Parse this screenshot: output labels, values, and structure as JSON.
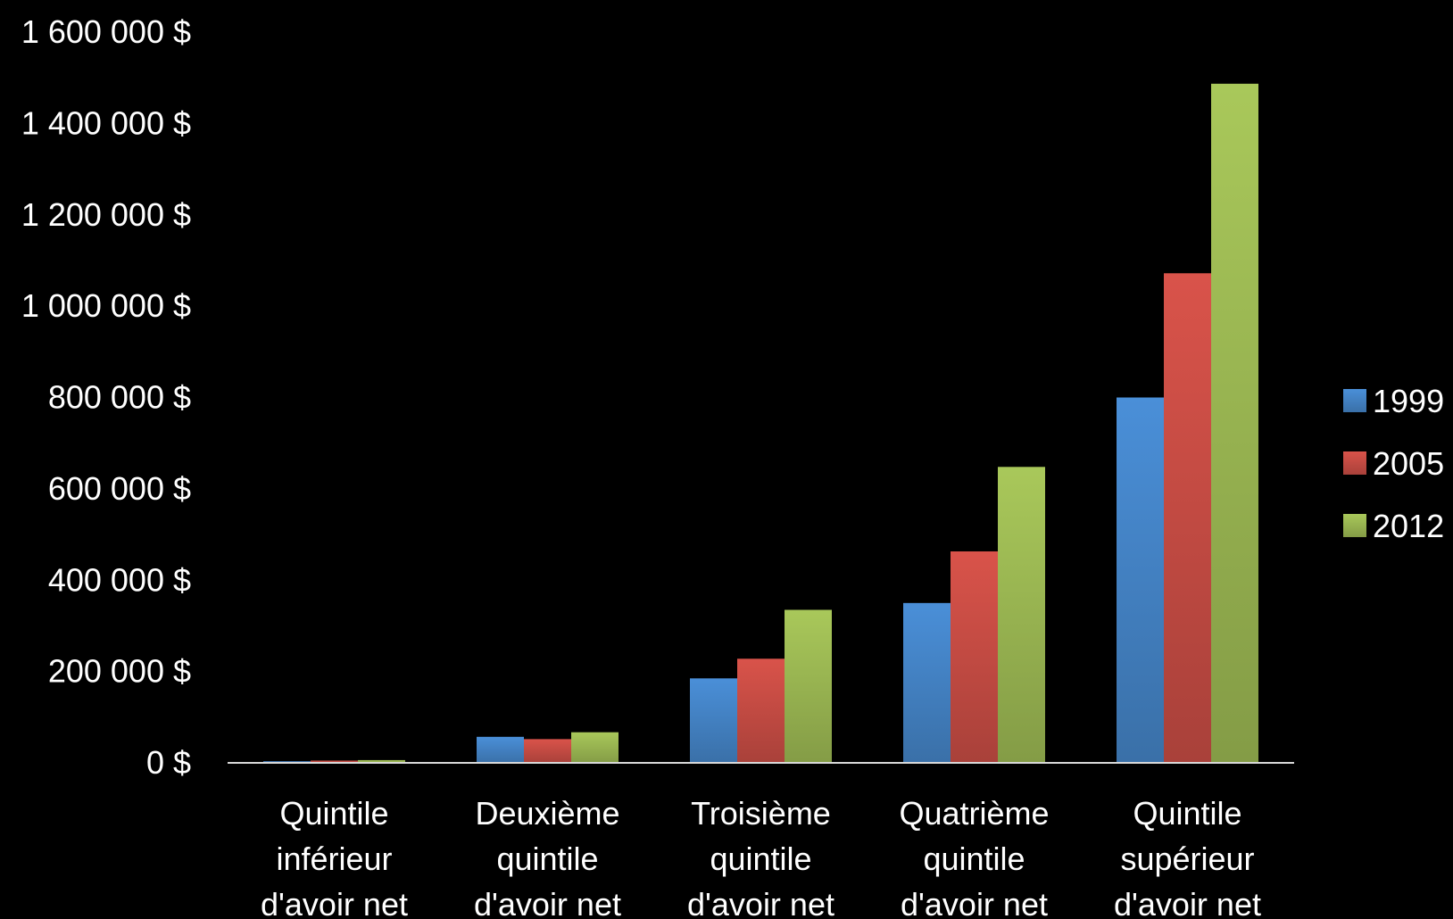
{
  "chart_data": {
    "type": "bar",
    "title": "",
    "xlabel": "",
    "ylabel": "",
    "categories": [
      [
        "Quintile",
        "inférieur",
        "d'avoir net"
      ],
      [
        "Deuxième",
        "quintile",
        "d'avoir net"
      ],
      [
        "Troisième",
        "quintile",
        "d'avoir net"
      ],
      [
        "Quatrième",
        "quintile",
        "d'avoir net"
      ],
      [
        "Quintile",
        "supérieur",
        "d'avoir net"
      ]
    ],
    "series": [
      {
        "name": "1999",
        "color": "#4a8fd8",
        "values": [
          3500,
          57000,
          185000,
          350000,
          800000
        ]
      },
      {
        "name": "2005",
        "color": "#d9534a",
        "values": [
          5000,
          52000,
          228000,
          463000,
          1072000
        ]
      },
      {
        "name": "2012",
        "color": "#a9c85a",
        "values": [
          6000,
          67000,
          335000,
          648000,
          1487000
        ]
      }
    ],
    "ylim": [
      0,
      1600000
    ],
    "yticks": [
      0,
      200000,
      400000,
      600000,
      800000,
      1000000,
      1200000,
      1400000,
      1600000
    ],
    "ytick_labels": [
      "0 $",
      "200 000 $",
      "400 000 $",
      "600 000 $",
      "800 000 $",
      "1 000 000 $",
      "1 200 000 $",
      "1 400 000 $",
      "1 600 000 $"
    ],
    "grid": false,
    "legend_position": "right"
  }
}
